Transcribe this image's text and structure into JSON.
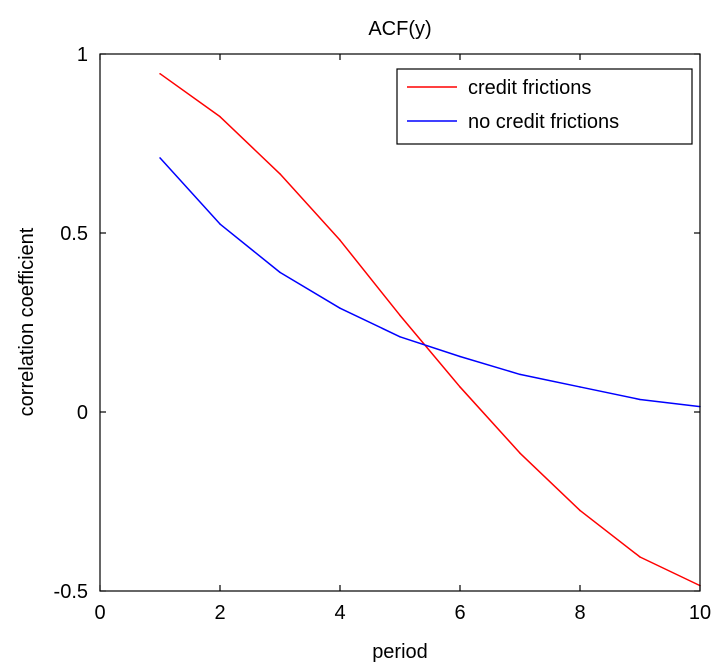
{
  "chart_data": {
    "type": "line",
    "title": "ACF(y)",
    "xlabel": "period",
    "ylabel": "correlation coefficient",
    "xlim": [
      0,
      10
    ],
    "ylim": [
      -0.5,
      1
    ],
    "xticks": [
      0,
      2,
      4,
      6,
      8,
      10
    ],
    "xtick_labels": [
      "0",
      "2",
      "4",
      "6",
      "8",
      "10"
    ],
    "yticks": [
      -0.5,
      0,
      0.5,
      1
    ],
    "ytick_labels": [
      "-0.5",
      "0",
      "0.5",
      "1"
    ],
    "grid": false,
    "legend_position": "top-right",
    "x": [
      1,
      2,
      3,
      4,
      5,
      6,
      7,
      8,
      9,
      10
    ],
    "series": [
      {
        "name": "credit frictions",
        "color": "#ff0000",
        "values": [
          0.945,
          0.825,
          0.665,
          0.48,
          0.27,
          0.07,
          -0.115,
          -0.275,
          -0.405,
          -0.485
        ]
      },
      {
        "name": "no credit frictions",
        "color": "#0000ff",
        "values": [
          0.71,
          0.525,
          0.39,
          0.29,
          0.21,
          0.155,
          0.105,
          0.07,
          0.035,
          0.015
        ]
      }
    ]
  }
}
